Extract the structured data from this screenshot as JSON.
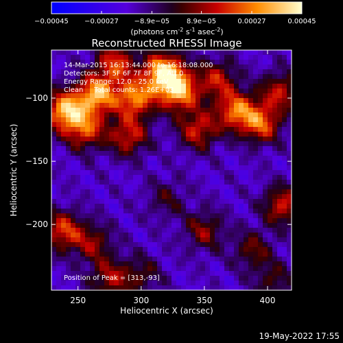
{
  "chart_data": {
    "type": "heatmap",
    "title": "Reconstructed RHESSI Image",
    "xlabel": "Heliocentric X (arcsec)",
    "ylabel": "Heliocentric Y (arcsec)",
    "xlim": [
      229,
      419
    ],
    "ylim": [
      -252,
      -62
    ],
    "x_ticks": [
      250,
      300,
      350,
      400
    ],
    "y_ticks": [
      -100,
      -150,
      -200
    ],
    "colorbar": {
      "ticks": [
        "-0.00045",
        "-0.00027",
        "-8.9e-05",
        "8.9e-05",
        "0.00027",
        "0.00045"
      ],
      "range": [
        -0.00045,
        0.00045
      ],
      "label_parts": [
        "(photons cm",
        "-2",
        " s",
        "-1",
        " asec",
        "-2",
        ")"
      ]
    },
    "annotations": [
      "14-Mar-2015 16:13:44.000 to 16:18:08.000",
      "Detectors: 3F 5F 6F 7F 8F 9F, Att 0",
      "Energy Range: 12.0 - 25.0 keV",
      "Clean     Total counts: 1.26E+03"
    ],
    "peak_label": "Position of Peak = [313,-93]",
    "peak_position": [
      313,
      -93
    ],
    "footer_date": "19-May-2022 17:55",
    "sources": [
      {
        "x": 318,
        "y": -80,
        "amp": 1.0
      },
      {
        "x": 330,
        "y": -95,
        "amp": 0.8
      },
      {
        "x": 295,
        "y": -100,
        "amp": 0.75
      },
      {
        "x": 265,
        "y": -97,
        "amp": 0.85
      },
      {
        "x": 240,
        "y": -110,
        "amp": 0.9
      },
      {
        "x": 256,
        "y": -125,
        "amp": 0.6
      },
      {
        "x": 290,
        "y": -130,
        "amp": 0.55
      },
      {
        "x": 280,
        "y": -72,
        "amp": 0.6
      },
      {
        "x": 360,
        "y": -85,
        "amp": 0.5
      },
      {
        "x": 375,
        "y": -110,
        "amp": 0.7
      },
      {
        "x": 395,
        "y": -120,
        "amp": 0.65
      },
      {
        "x": 410,
        "y": -95,
        "amp": 0.5
      },
      {
        "x": 345,
        "y": -125,
        "amp": 0.55
      },
      {
        "x": 412,
        "y": -185,
        "amp": 0.55
      },
      {
        "x": 238,
        "y": -205,
        "amp": 0.6
      },
      {
        "x": 262,
        "y": -215,
        "amp": 0.4
      },
      {
        "x": 350,
        "y": -205,
        "amp": 0.4
      },
      {
        "x": 388,
        "y": -220,
        "amp": 0.35
      },
      {
        "x": 300,
        "y": -240,
        "amp": 0.3
      },
      {
        "x": 275,
        "y": -243,
        "amp": 0.45
      },
      {
        "x": 320,
        "y": -180,
        "amp": 0.25
      },
      {
        "x": 405,
        "y": -245,
        "amp": 0.3
      }
    ]
  }
}
